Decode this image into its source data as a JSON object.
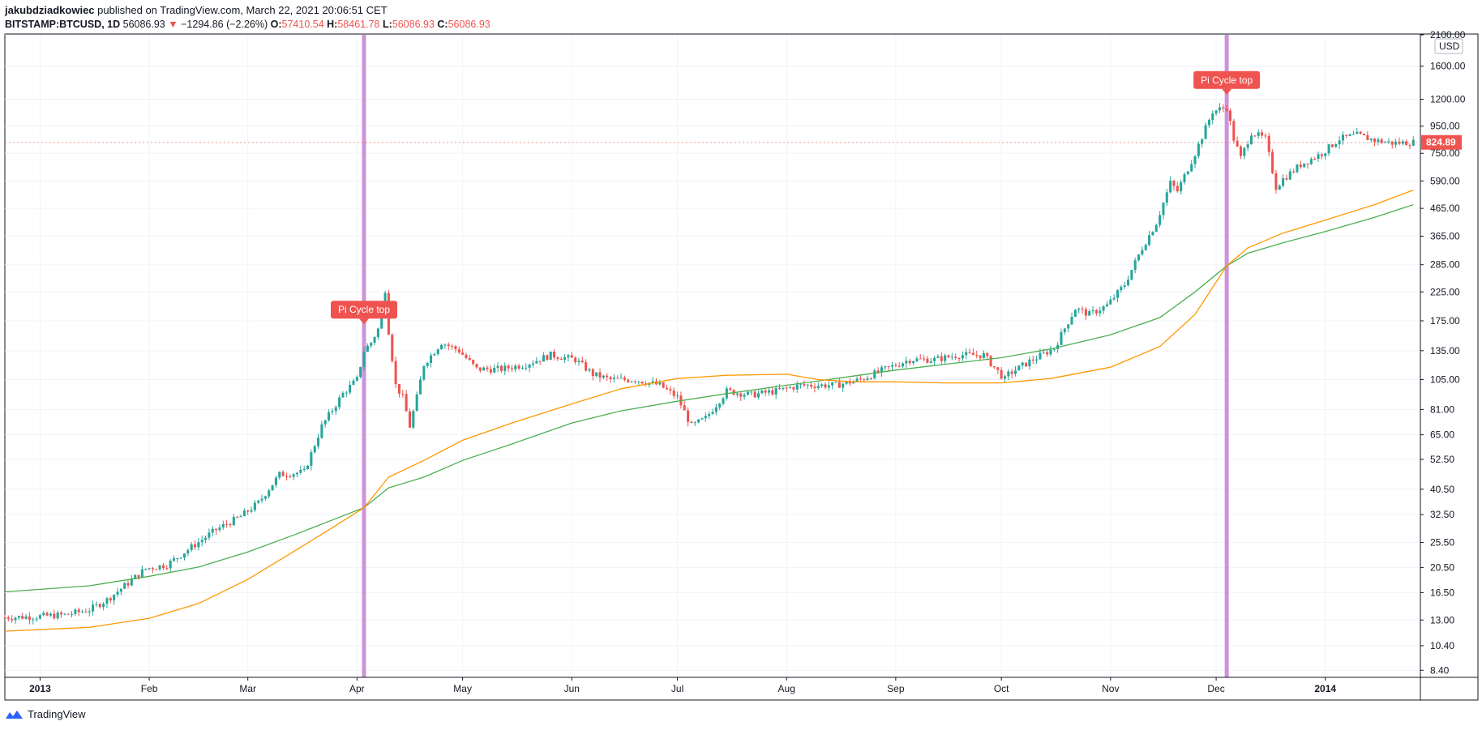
{
  "header": {
    "author": "jakubdziadkowiec",
    "published_text": "published on TradingView.com, March 22, 2021 20:06:51 CET",
    "symbol": "BITSTAMP:BTCUSD, 1D",
    "last_price": "56086.93",
    "change": "−1294.86 (−2.26%)",
    "o_label": "O:",
    "o_value": "57410.54",
    "h_label": "H:",
    "h_value": "58461.78",
    "l_label": "L:",
    "l_value": "56086.93",
    "c_label": "C:",
    "c_value": "56086.93"
  },
  "footer": {
    "brand": "TradingView"
  },
  "colors": {
    "up": "#26a69a",
    "down": "#ef5350",
    "ma_fast": "#ff9800",
    "ma_slow": "#4caf50",
    "marker": "#ce93d8",
    "grid": "#f0f3fa",
    "axis": "#131722"
  },
  "chart_data": {
    "type": "candlestick",
    "y_scale": "log",
    "y_unit": "USD",
    "ylim": [
      7.9,
      2100
    ],
    "y_ticks": [
      "2100.00",
      "1600.00",
      "1200.00",
      "950.00",
      "750.00",
      "590.00",
      "465.00",
      "365.00",
      "285.00",
      "225.00",
      "175.00",
      "135.00",
      "105.00",
      "81.00",
      "65.00",
      "52.50",
      "40.50",
      "32.50",
      "25.50",
      "20.50",
      "16.50",
      "13.00",
      "10.40",
      "8.40"
    ],
    "x_ticks": [
      "2013",
      "Feb",
      "Mar",
      "Apr",
      "May",
      "Jun",
      "Jul",
      "Aug",
      "Sep",
      "Oct",
      "Nov",
      "Dec",
      "2014"
    ],
    "x_range": [
      "2012-12-22",
      "2014-01-28"
    ],
    "last_price_label": "824.89",
    "annotations": [
      {
        "text": "Pi Cycle top",
        "date": "2013-04-03",
        "price": 155
      },
      {
        "text": "Pi Cycle top",
        "date": "2013-12-04",
        "price": 1140
      }
    ],
    "price_path": [
      [
        "2012-12-22",
        13.3
      ],
      [
        "2012-12-31",
        13.4
      ],
      [
        "2013-01-08",
        13.6
      ],
      [
        "2013-01-15",
        14.2
      ],
      [
        "2013-01-20",
        15.5
      ],
      [
        "2013-01-25",
        17.5
      ],
      [
        "2013-01-31",
        20.3
      ],
      [
        "2013-02-06",
        21.0
      ],
      [
        "2013-02-13",
        24.5
      ],
      [
        "2013-02-20",
        28.5
      ],
      [
        "2013-02-27",
        32.0
      ],
      [
        "2013-03-04",
        36.0
      ],
      [
        "2013-03-10",
        46.0
      ],
      [
        "2013-03-17",
        47.0
      ],
      [
        "2013-03-22",
        70.0
      ],
      [
        "2013-03-28",
        93.0
      ],
      [
        "2013-04-01",
        105
      ],
      [
        "2013-04-03",
        135
      ],
      [
        "2013-04-05",
        145
      ],
      [
        "2013-04-07",
        163
      ],
      [
        "2013-04-09",
        230
      ],
      [
        "2013-04-10",
        160
      ],
      [
        "2013-04-12",
        100
      ],
      [
        "2013-04-14",
        90
      ],
      [
        "2013-04-16",
        70
      ],
      [
        "2013-04-18",
        90
      ],
      [
        "2013-04-20",
        120
      ],
      [
        "2013-04-25",
        145
      ],
      [
        "2013-04-30",
        135
      ],
      [
        "2013-05-05",
        115
      ],
      [
        "2013-05-12",
        115
      ],
      [
        "2013-05-19",
        120
      ],
      [
        "2013-05-26",
        130
      ],
      [
        "2013-06-02",
        125
      ],
      [
        "2013-06-07",
        110
      ],
      [
        "2013-06-12",
        105
      ],
      [
        "2013-06-19",
        105
      ],
      [
        "2013-06-26",
        100
      ],
      [
        "2013-07-01",
        90
      ],
      [
        "2013-07-05",
        70
      ],
      [
        "2013-07-09",
        75
      ],
      [
        "2013-07-15",
        95
      ],
      [
        "2013-07-22",
        92
      ],
      [
        "2013-07-29",
        95
      ],
      [
        "2013-08-05",
        100
      ],
      [
        "2013-08-15",
        100
      ],
      [
        "2013-08-22",
        105
      ],
      [
        "2013-08-29",
        115
      ],
      [
        "2013-09-05",
        125
      ],
      [
        "2013-09-12",
        125
      ],
      [
        "2013-09-19",
        130
      ],
      [
        "2013-09-26",
        130
      ],
      [
        "2013-10-02",
        105
      ],
      [
        "2013-10-03",
        110
      ],
      [
        "2013-10-09",
        123
      ],
      [
        "2013-10-16",
        138
      ],
      [
        "2013-10-22",
        195
      ],
      [
        "2013-10-26",
        185
      ],
      [
        "2013-10-31",
        200
      ],
      [
        "2013-11-05",
        240
      ],
      [
        "2013-11-10",
        330
      ],
      [
        "2013-11-14",
        410
      ],
      [
        "2013-11-18",
        580
      ],
      [
        "2013-11-20",
        540
      ],
      [
        "2013-11-25",
        750
      ],
      [
        "2013-11-30",
        1080
      ],
      [
        "2013-12-04",
        1120
      ],
      [
        "2013-12-06",
        850
      ],
      [
        "2013-12-08",
        720
      ],
      [
        "2013-12-11",
        900
      ],
      [
        "2013-12-15",
        850
      ],
      [
        "2013-12-18",
        560
      ],
      [
        "2013-12-20",
        600
      ],
      [
        "2013-12-25",
        680
      ],
      [
        "2013-12-31",
        750
      ],
      [
        "2014-01-05",
        850
      ],
      [
        "2014-01-10",
        880
      ],
      [
        "2014-01-15",
        840
      ],
      [
        "2014-01-20",
        820
      ],
      [
        "2014-01-25",
        825
      ]
    ],
    "series": [
      {
        "name": "",
        "color": "#4caf50",
        "points": [
          [
            "2012-12-22",
            16.6
          ],
          [
            "2013-01-15",
            17.5
          ],
          [
            "2013-02-01",
            19.0
          ],
          [
            "2013-02-15",
            20.6
          ],
          [
            "2013-03-01",
            23.5
          ],
          [
            "2013-03-15",
            27.5
          ],
          [
            "2013-03-25",
            31.0
          ],
          [
            "2013-04-03",
            34.5
          ],
          [
            "2013-04-10",
            41.0
          ],
          [
            "2013-04-20",
            45.0
          ],
          [
            "2013-05-01",
            52.0
          ],
          [
            "2013-05-15",
            60.0
          ],
          [
            "2013-06-01",
            72.0
          ],
          [
            "2013-06-15",
            80.0
          ],
          [
            "2013-07-01",
            87.0
          ],
          [
            "2013-07-15",
            93.0
          ],
          [
            "2013-08-01",
            100.0
          ],
          [
            "2013-08-15",
            106.0
          ],
          [
            "2013-09-01",
            114.0
          ],
          [
            "2013-09-15",
            120.0
          ],
          [
            "2013-10-01",
            127.0
          ],
          [
            "2013-10-15",
            137.0
          ],
          [
            "2013-11-01",
            155.0
          ],
          [
            "2013-11-15",
            180.0
          ],
          [
            "2013-11-25",
            225.0
          ],
          [
            "2013-12-04",
            282.0
          ],
          [
            "2013-12-10",
            315.0
          ],
          [
            "2013-12-20",
            345.0
          ],
          [
            "2014-01-01",
            380.0
          ],
          [
            "2014-01-15",
            430.0
          ],
          [
            "2014-01-26",
            480.0
          ]
        ]
      },
      {
        "name": "",
        "color": "#ff9800",
        "points": [
          [
            "2012-12-22",
            11.8
          ],
          [
            "2013-01-15",
            12.2
          ],
          [
            "2013-02-01",
            13.2
          ],
          [
            "2013-02-15",
            15.0
          ],
          [
            "2013-03-01",
            18.5
          ],
          [
            "2013-03-15",
            24.0
          ],
          [
            "2013-03-25",
            29.0
          ],
          [
            "2013-04-03",
            34.5
          ],
          [
            "2013-04-10",
            45.0
          ],
          [
            "2013-04-20",
            52.0
          ],
          [
            "2013-05-01",
            62.0
          ],
          [
            "2013-05-15",
            72.0
          ],
          [
            "2013-06-01",
            85.0
          ],
          [
            "2013-06-15",
            97.0
          ],
          [
            "2013-07-01",
            106.0
          ],
          [
            "2013-07-15",
            109.0
          ],
          [
            "2013-08-01",
            110.0
          ],
          [
            "2013-08-10",
            105.0
          ],
          [
            "2013-08-20",
            103.0
          ],
          [
            "2013-09-01",
            103.0
          ],
          [
            "2013-09-15",
            102.0
          ],
          [
            "2013-10-01",
            102.0
          ],
          [
            "2013-10-15",
            106.0
          ],
          [
            "2013-11-01",
            117.0
          ],
          [
            "2013-11-15",
            140.0
          ],
          [
            "2013-11-25",
            185.0
          ],
          [
            "2013-12-04",
            282.0
          ],
          [
            "2013-12-10",
            330.0
          ],
          [
            "2013-12-20",
            375.0
          ],
          [
            "2014-01-01",
            420.0
          ],
          [
            "2014-01-15",
            480.0
          ],
          [
            "2014-01-26",
            545.0
          ]
        ]
      }
    ]
  }
}
